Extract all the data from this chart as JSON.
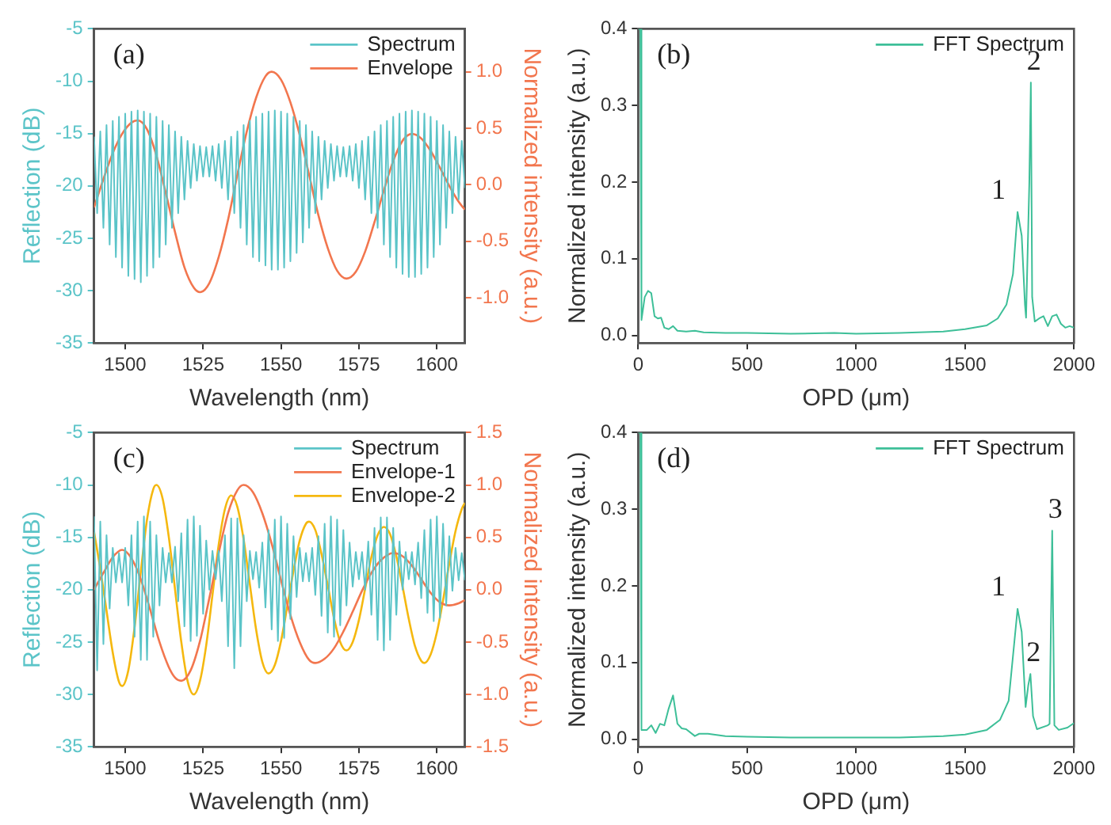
{
  "chart_data": [
    {
      "type": "line",
      "xlabel": "Wavelength (nm)",
      "ylabel": "Reflection (dB)",
      "y2label": "Normalized intensity (a.u.)",
      "annotations": [
        "(a)"
      ],
      "legend": "top right",
      "xlim": [
        1490,
        1609
      ],
      "xticks": [
        1500,
        1525,
        1550,
        1575,
        1600
      ],
      "ylim": [
        -35,
        -5
      ],
      "yticks": [
        -35,
        -30,
        -25,
        -20,
        -15,
        -10,
        -5
      ],
      "y2lim": [
        -1.4,
        1.38
      ],
      "y2ticks": [
        {
          "value": -1,
          "label": "-1.0"
        },
        -0.5,
        {
          "value": 0,
          "label": "0.0"
        },
        0.5,
        {
          "value": 1,
          "label": "1.0"
        }
      ],
      "series": [
        {
          "name": "Spectrum",
          "color": "#5bc4c8",
          "x": [
            1490,
            1491,
            1492,
            1493,
            1494,
            1495,
            1496,
            1497,
            1498,
            1499,
            1500,
            1501,
            1502,
            1503,
            1504,
            1505,
            1506,
            1507,
            1508,
            1509,
            1510,
            1511,
            1512,
            1513,
            1514,
            1515,
            1516,
            1517,
            1518,
            1519,
            1520,
            1521,
            1522,
            1523,
            1524,
            1525,
            1526,
            1527,
            1528,
            1529,
            1530,
            1531,
            1532,
            1533,
            1534,
            1535,
            1536,
            1537,
            1538,
            1539,
            1540,
            1541,
            1542,
            1543,
            1544,
            1545,
            1546,
            1547,
            1548,
            1549,
            1550,
            1551,
            1552,
            1553,
            1554,
            1555,
            1556,
            1557,
            1558,
            1559,
            1560,
            1561,
            1562,
            1563,
            1564,
            1565,
            1566,
            1567,
            1568,
            1569,
            1570,
            1571,
            1572,
            1573,
            1574,
            1575,
            1576,
            1577,
            1578,
            1579,
            1580,
            1581,
            1582,
            1583,
            1584,
            1585,
            1586,
            1587,
            1588,
            1589,
            1590,
            1591,
            1592,
            1593,
            1594,
            1595,
            1596,
            1597,
            1598,
            1599,
            1600,
            1601,
            1602,
            1603,
            1604,
            1605,
            1606,
            1607,
            1608,
            1609
          ],
          "values": [
            -15.3,
            -22.6,
            -14.8,
            -24.0,
            -14.2,
            -25.6,
            -13.8,
            -26.8,
            -13.4,
            -27.8,
            -13.1,
            -28.6,
            -12.9,
            -28.9,
            -12.8,
            -29.2,
            -12.9,
            -28.6,
            -13.1,
            -27.8,
            -13.4,
            -26.8,
            -13.8,
            -25.6,
            -14.2,
            -24.0,
            -14.8,
            -22.6,
            -15.3,
            -21.3,
            -15.7,
            -20.2,
            -16.0,
            -19.5,
            -16.2,
            -19.1,
            -16.3,
            -19.1,
            -16.2,
            -19.5,
            -16.0,
            -20.2,
            -15.7,
            -21.3,
            -15.3,
            -22.6,
            -14.8,
            -24.0,
            -14.2,
            -25.6,
            -13.8,
            -26.8,
            -13.4,
            -27.2,
            -13.1,
            -27.6,
            -12.9,
            -28.0,
            -12.8,
            -28.0,
            -12.9,
            -27.8,
            -13.1,
            -27.2,
            -13.4,
            -26.4,
            -13.8,
            -25.4,
            -14.2,
            -24.0,
            -14.8,
            -22.6,
            -15.3,
            -21.3,
            -15.7,
            -20.2,
            -16.0,
            -19.5,
            -16.2,
            -19.1,
            -16.3,
            -19.1,
            -16.2,
            -19.5,
            -16.0,
            -20.2,
            -15.7,
            -21.3,
            -15.3,
            -22.6,
            -14.8,
            -24.0,
            -14.2,
            -25.6,
            -13.8,
            -26.8,
            -13.4,
            -27.8,
            -13.1,
            -28.4,
            -12.9,
            -28.7,
            -12.8,
            -28.7,
            -12.9,
            -28.4,
            -13.1,
            -27.8,
            -13.4,
            -26.8,
            -13.8,
            -25.6,
            -14.2,
            -24.0,
            -14.8,
            -22.6,
            -15.3,
            -21.3,
            -15.7,
            -20.2
          ]
        },
        {
          "name": "Envelope",
          "color": "#f2764e",
          "axis": "y2",
          "x": [
            1490,
            1493,
            1496,
            1499,
            1502,
            1504,
            1507,
            1510,
            1513,
            1516,
            1519,
            1522,
            1524,
            1527,
            1530,
            1533,
            1536,
            1539,
            1542,
            1545,
            1547,
            1550,
            1553,
            1556,
            1559,
            1562,
            1565,
            1568,
            1571,
            1574,
            1577,
            1580,
            1583,
            1586,
            1589,
            1592,
            1595,
            1598,
            1601,
            1604,
            1607,
            1609
          ],
          "values": [
            -0.2,
            0.05,
            0.28,
            0.45,
            0.55,
            0.57,
            0.49,
            0.26,
            -0.07,
            -0.42,
            -0.73,
            -0.91,
            -0.95,
            -0.87,
            -0.64,
            -0.31,
            0.09,
            0.47,
            0.77,
            0.96,
            1.0,
            0.93,
            0.73,
            0.44,
            0.09,
            -0.27,
            -0.56,
            -0.76,
            -0.83,
            -0.77,
            -0.59,
            -0.33,
            -0.05,
            0.21,
            0.39,
            0.45,
            0.41,
            0.3,
            0.15,
            -0.01,
            -0.15,
            -0.22
          ]
        }
      ]
    },
    {
      "type": "line",
      "xlabel": "OPD (μm)",
      "ylabel": "Normalized intensity (a.u.)",
      "legend": "top right",
      "annotations": [
        "(b)",
        {
          "text": "1",
          "x": 1741,
          "y": 0.161
        },
        {
          "text": "2",
          "x": 1802,
          "y": 0.33
        }
      ],
      "xlim": [
        0,
        2000
      ],
      "xticks": [
        0,
        500,
        1000,
        1500,
        2000
      ],
      "ylim": [
        -0.01,
        0.4
      ],
      "yticks": [
        {
          "value": 0,
          "label": "0.0"
        },
        0.1,
        0.2,
        0.3,
        0.4
      ],
      "series": [
        {
          "name": "FFT Spectrum",
          "color": "#3dbf98",
          "x": [
            0,
            10,
            15,
            30,
            45,
            60,
            75,
            90,
            105,
            120,
            140,
            160,
            180,
            220,
            260,
            300,
            400,
            500,
            700,
            900,
            1000,
            1200,
            1400,
            1500,
            1600,
            1650,
            1690,
            1720,
            1741,
            1760,
            1775,
            1780,
            1795,
            1802,
            1808,
            1820,
            1840,
            1860,
            1880,
            1900,
            1920,
            1940,
            1960,
            1980,
            2000
          ],
          "values": [
            0.4,
            0.4,
            0.02,
            0.05,
            0.058,
            0.055,
            0.025,
            0.022,
            0.023,
            0.01,
            0.008,
            0.012,
            0.006,
            0.005,
            0.006,
            0.004,
            0.003,
            0.003,
            0.002,
            0.003,
            0.002,
            0.003,
            0.005,
            0.008,
            0.013,
            0.022,
            0.04,
            0.08,
            0.161,
            0.13,
            0.04,
            0.023,
            0.2,
            0.33,
            0.05,
            0.018,
            0.022,
            0.025,
            0.012,
            0.025,
            0.027,
            0.015,
            0.01,
            0.012,
            0.01
          ]
        }
      ]
    },
    {
      "type": "line",
      "xlabel": "Wavelength (nm)",
      "ylabel": "Reflection (dB)",
      "y2label": "Normalized intensity (a.u.)",
      "annotations": [
        "(c)"
      ],
      "legend": "top right",
      "xlim": [
        1490,
        1609
      ],
      "xticks": [
        1500,
        1525,
        1550,
        1575,
        1600
      ],
      "ylim": [
        -35,
        -5
      ],
      "yticks": [
        -35,
        -30,
        -25,
        -20,
        -15,
        -10,
        -5
      ],
      "y2lim": [
        -1.5,
        1.5
      ],
      "y2ticks": [
        -1.5,
        {
          "value": -1,
          "label": "-1.0"
        },
        -0.5,
        {
          "value": 0,
          "label": "0.0"
        },
        0.5,
        {
          "value": 1,
          "label": "1.0"
        },
        1.5
      ],
      "series": [
        {
          "name": "Spectrum",
          "color": "#5bc4c8",
          "x": [
            1490,
            1491,
            1492,
            1493,
            1494,
            1495,
            1496,
            1497,
            1498,
            1499,
            1500,
            1501,
            1502,
            1503,
            1504,
            1505,
            1506,
            1507,
            1508,
            1509,
            1510,
            1511,
            1512,
            1513,
            1514,
            1515,
            1516,
            1517,
            1518,
            1519,
            1520,
            1521,
            1522,
            1523,
            1524,
            1525,
            1526,
            1527,
            1528,
            1529,
            1530,
            1531,
            1532,
            1533,
            1534,
            1535,
            1536,
            1537,
            1538,
            1539,
            1540,
            1541,
            1542,
            1543,
            1544,
            1545,
            1546,
            1547,
            1548,
            1549,
            1550,
            1551,
            1552,
            1553,
            1554,
            1555,
            1556,
            1557,
            1558,
            1559,
            1560,
            1561,
            1562,
            1563,
            1564,
            1565,
            1566,
            1567,
            1568,
            1569,
            1570,
            1571,
            1572,
            1573,
            1574,
            1575,
            1576,
            1577,
            1578,
            1579,
            1580,
            1581,
            1582,
            1583,
            1584,
            1585,
            1586,
            1587,
            1588,
            1589,
            1590,
            1591,
            1592,
            1593,
            1594,
            1595,
            1596,
            1597,
            1598,
            1599,
            1600,
            1601,
            1602,
            1603,
            1604,
            1605,
            1606,
            1607,
            1608,
            1609
          ],
          "values": [
            -13.0,
            -27.7,
            -13.5,
            -25.2,
            -14.8,
            -21.8,
            -16.0,
            -19.3,
            -16.5,
            -19.3,
            -16.0,
            -21.5,
            -14.8,
            -24.5,
            -13.5,
            -26.7,
            -13.0,
            -26.7,
            -13.5,
            -24.5,
            -14.8,
            -21.5,
            -16.0,
            -19.3,
            -16.5,
            -19.3,
            -15.9,
            -21.1,
            -14.6,
            -23.5,
            -13.3,
            -24.9,
            -13.0,
            -24.4,
            -13.9,
            -22.3,
            -15.3,
            -20.0,
            -16.3,
            -19.0,
            -16.3,
            -21.1,
            -14.8,
            -25.4,
            -13.2,
            -27.5,
            -13.2,
            -25.4,
            -14.8,
            -21.1,
            -16.3,
            -19.0,
            -16.4,
            -19.8,
            -15.5,
            -21.7,
            -14.3,
            -23.8,
            -13.3,
            -24.9,
            -13.0,
            -24.6,
            -13.7,
            -22.8,
            -14.9,
            -20.7,
            -16.0,
            -19.2,
            -16.5,
            -19.2,
            -16.0,
            -20.5,
            -14.9,
            -22.5,
            -13.7,
            -24.1,
            -13.0,
            -24.5,
            -13.3,
            -23.4,
            -14.3,
            -21.5,
            -15.5,
            -19.7,
            -16.4,
            -19.0,
            -16.4,
            -20.0,
            -15.4,
            -22.4,
            -14.1,
            -24.8,
            -13.1,
            -25.8,
            -13.1,
            -24.8,
            -14.1,
            -22.4,
            -15.4,
            -20.0,
            -16.4,
            -19.0,
            -16.4,
            -19.5,
            -15.5,
            -20.8,
            -14.3,
            -22.2,
            -13.3,
            -23.0,
            -13.0,
            -22.7,
            -13.7,
            -21.5,
            -14.9,
            -20.1,
            -16.0,
            -19.1,
            -16.5,
            -19.1
          ]
        },
        {
          "name": "Envelope-1",
          "color": "#f2764e",
          "axis": "y2",
          "x": [
            1490,
            1493,
            1496,
            1499,
            1502,
            1505,
            1508,
            1511,
            1514,
            1516,
            1518,
            1521,
            1524,
            1527,
            1530,
            1533,
            1536,
            1538,
            1541,
            1544,
            1547,
            1550,
            1553,
            1556,
            1559,
            1561,
            1564,
            1567,
            1570,
            1573,
            1576,
            1579,
            1582,
            1586,
            1589,
            1592,
            1595,
            1598,
            1601,
            1604,
            1607,
            1609
          ],
          "values": [
            0.0,
            0.16,
            0.31,
            0.38,
            0.3,
            0.1,
            -0.19,
            -0.5,
            -0.74,
            -0.84,
            -0.87,
            -0.77,
            -0.49,
            -0.08,
            0.35,
            0.73,
            0.95,
            1.0,
            0.93,
            0.73,
            0.44,
            0.09,
            -0.24,
            -0.5,
            -0.67,
            -0.7,
            -0.66,
            -0.56,
            -0.4,
            -0.21,
            -0.01,
            0.16,
            0.28,
            0.35,
            0.32,
            0.23,
            0.1,
            -0.03,
            -0.12,
            -0.15,
            -0.13,
            -0.1
          ]
        },
        {
          "name": "Envelope-2",
          "color": "#f5b80f",
          "axis": "y2",
          "x": [
            1490,
            1492,
            1494,
            1496,
            1498,
            1499,
            1501,
            1503,
            1505,
            1507,
            1509,
            1510,
            1512,
            1514,
            1516,
            1518,
            1520,
            1522,
            1524,
            1526,
            1528,
            1530,
            1532,
            1534,
            1536,
            1538,
            1540,
            1542,
            1544,
            1546,
            1548,
            1550,
            1552,
            1554,
            1556,
            1558,
            1559,
            1561,
            1563,
            1565,
            1567,
            1569,
            1571,
            1573,
            1575,
            1577,
            1579,
            1581,
            1583,
            1585,
            1587,
            1589,
            1591,
            1593,
            1595,
            1596,
            1598,
            1600,
            1602,
            1604,
            1606,
            1608,
            1609
          ],
          "values": [
            0.55,
            0.2,
            -0.2,
            -0.6,
            -0.88,
            -0.92,
            -0.77,
            -0.36,
            0.17,
            0.67,
            0.96,
            1.0,
            0.87,
            0.5,
            0.0,
            -0.5,
            -0.87,
            -1.0,
            -0.87,
            -0.53,
            -0.05,
            0.43,
            0.77,
            0.9,
            0.79,
            0.48,
            0.05,
            -0.38,
            -0.69,
            -0.8,
            -0.72,
            -0.49,
            -0.16,
            0.18,
            0.47,
            0.63,
            0.65,
            0.57,
            0.34,
            0.04,
            -0.27,
            -0.5,
            -0.58,
            -0.5,
            -0.29,
            0.01,
            0.31,
            0.52,
            0.6,
            0.53,
            0.32,
            0.03,
            -0.28,
            -0.54,
            -0.68,
            -0.7,
            -0.62,
            -0.41,
            -0.1,
            0.25,
            0.56,
            0.77,
            0.83
          ]
        }
      ]
    },
    {
      "type": "line",
      "xlabel": "OPD (μm)",
      "ylabel": "Normalized intensity (a.u.)",
      "legend": "top right",
      "annotations": [
        "(d)",
        {
          "text": "1",
          "x": 1741,
          "y": 0.17
        },
        {
          "text": "2",
          "x": 1800,
          "y": 0.085
        },
        {
          "text": "3",
          "x": 1900,
          "y": 0.272
        }
      ],
      "xlim": [
        0,
        2000
      ],
      "xticks": [
        0,
        500,
        1000,
        1500,
        2000
      ],
      "ylim": [
        -0.01,
        0.4
      ],
      "yticks": [
        {
          "value": 0,
          "label": "0.0"
        },
        0.1,
        0.2,
        0.3,
        0.4
      ],
      "series": [
        {
          "name": "FFT Spectrum",
          "color": "#3dbf98",
          "x": [
            0,
            10,
            15,
            40,
            60,
            80,
            100,
            120,
            140,
            160,
            180,
            200,
            220,
            260,
            280,
            320,
            400,
            500,
            700,
            1000,
            1200,
            1400,
            1500,
            1600,
            1660,
            1700,
            1741,
            1760,
            1778,
            1790,
            1800,
            1812,
            1830,
            1880,
            1888,
            1900,
            1910,
            1930,
            1970,
            2000
          ],
          "values": [
            0.4,
            0.4,
            0.012,
            0.012,
            0.018,
            0.008,
            0.02,
            0.018,
            0.04,
            0.057,
            0.02,
            0.014,
            0.013,
            0.004,
            0.007,
            0.007,
            0.004,
            0.003,
            0.002,
            0.002,
            0.002,
            0.004,
            0.006,
            0.012,
            0.025,
            0.05,
            0.17,
            0.14,
            0.042,
            0.07,
            0.085,
            0.03,
            0.013,
            0.018,
            0.02,
            0.272,
            0.018,
            0.012,
            0.015,
            0.021
          ]
        }
      ]
    }
  ]
}
